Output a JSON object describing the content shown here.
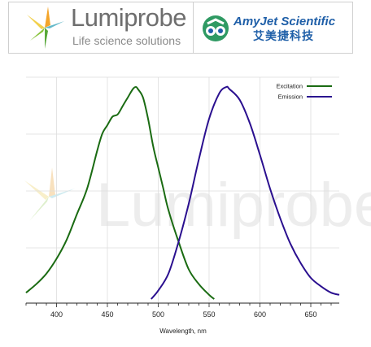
{
  "header": {
    "lumiprobe_name": "Lumiprobe",
    "lumiprobe_tagline": "Life science solutions",
    "amyjet_name": "AmyJet Scientific",
    "amyjet_chinese": "艾美捷科技"
  },
  "watermark": "Lumiprobe",
  "colors": {
    "excitation": "#1a6b12",
    "emission": "#2a0f8f",
    "grid": "#dddddd",
    "axis": "#222222"
  },
  "chart_data": {
    "type": "line",
    "xlabel": "Wavelength, nm",
    "ylabel": "",
    "xlim": [
      370,
      678
    ],
    "ylim": [
      0,
      1
    ],
    "xticks": [
      400,
      450,
      500,
      550,
      600,
      650
    ],
    "grid": true,
    "legend_position": "top-right",
    "series": [
      {
        "name": "Excitation",
        "x": [
          370,
          380,
          390,
          400,
          410,
          420,
          430,
          440,
          445,
          450,
          455,
          460,
          465,
          470,
          475,
          478,
          480,
          485,
          490,
          495,
          500,
          505,
          510,
          520,
          530,
          540,
          550,
          555
        ],
        "y": [
          0.03,
          0.07,
          0.12,
          0.19,
          0.28,
          0.4,
          0.52,
          0.7,
          0.78,
          0.82,
          0.86,
          0.87,
          0.91,
          0.95,
          0.99,
          1.0,
          0.99,
          0.95,
          0.85,
          0.72,
          0.62,
          0.52,
          0.42,
          0.27,
          0.14,
          0.07,
          0.02,
          0.0
        ]
      },
      {
        "name": "Emission",
        "x": [
          493,
          500,
          510,
          520,
          530,
          540,
          550,
          560,
          567,
          570,
          580,
          590,
          600,
          610,
          620,
          630,
          640,
          650,
          660,
          670,
          678
        ],
        "y": [
          0.0,
          0.04,
          0.12,
          0.27,
          0.45,
          0.66,
          0.85,
          0.97,
          1.0,
          0.99,
          0.94,
          0.83,
          0.68,
          0.52,
          0.38,
          0.26,
          0.17,
          0.1,
          0.06,
          0.03,
          0.02
        ]
      }
    ]
  }
}
